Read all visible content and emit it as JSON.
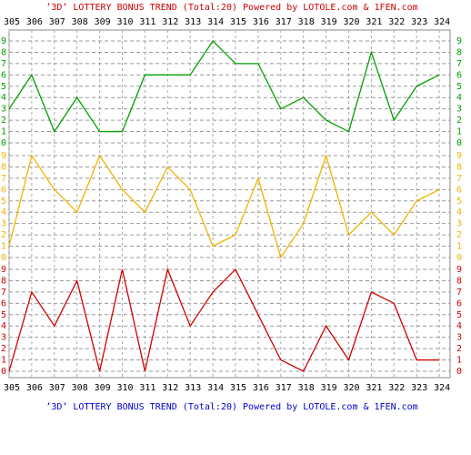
{
  "title": "’3D’ LOTTERY BONUS TREND (Total:20)  Powered by LOTOLE.com & 1FEN.com",
  "footer": "’3D’ LOTTERY BONUS TREND (Total:20)  Powered by LOTOLE.com & 1FEN.com",
  "chart_data": [
    {
      "type": "line",
      "categories": [
        "305",
        "306",
        "307",
        "308",
        "309",
        "310",
        "311",
        "312",
        "313",
        "314",
        "315",
        "316",
        "317",
        "318",
        "319",
        "320",
        "321",
        "322",
        "323",
        "324"
      ],
      "series": [
        {
          "color": "#00a000",
          "values": [
            3,
            6,
            1,
            4,
            1,
            1,
            6,
            6,
            6,
            9,
            7,
            7,
            3,
            4,
            2,
            1,
            8,
            2,
            5,
            6
          ]
        }
      ],
      "ylim": [
        0,
        9
      ],
      "yticks": [
        0,
        1,
        2,
        3,
        4,
        5,
        6,
        7,
        8,
        9
      ],
      "grid": true
    },
    {
      "type": "line",
      "categories": [
        "305",
        "306",
        "307",
        "308",
        "309",
        "310",
        "311",
        "312",
        "313",
        "314",
        "315",
        "316",
        "317",
        "318",
        "319",
        "320",
        "321",
        "322",
        "323",
        "324"
      ],
      "series": [
        {
          "color": "#f0b400",
          "values": [
            1,
            9,
            6,
            4,
            9,
            6,
            4,
            8,
            6,
            1,
            2,
            7,
            0,
            3,
            9,
            2,
            4,
            2,
            5,
            6
          ]
        }
      ],
      "ylim": [
        0,
        9
      ],
      "yticks": [
        0,
        1,
        2,
        3,
        4,
        5,
        6,
        7,
        8,
        9
      ],
      "grid": true
    },
    {
      "type": "line",
      "categories": [
        "305",
        "306",
        "307",
        "308",
        "309",
        "310",
        "311",
        "312",
        "313",
        "314",
        "315",
        "316",
        "317",
        "318",
        "319",
        "320",
        "321",
        "322",
        "323",
        "324"
      ],
      "series": [
        {
          "color": "#d00000",
          "values": [
            0,
            7,
            4,
            8,
            0,
            9,
            0,
            9,
            4,
            7,
            9,
            5,
            1,
            0,
            4,
            1,
            7,
            6,
            1,
            1
          ]
        }
      ],
      "ylim": [
        0,
        9
      ],
      "yticks": [
        0,
        1,
        2,
        3,
        4,
        5,
        6,
        7,
        8,
        9
      ],
      "grid": true
    }
  ]
}
